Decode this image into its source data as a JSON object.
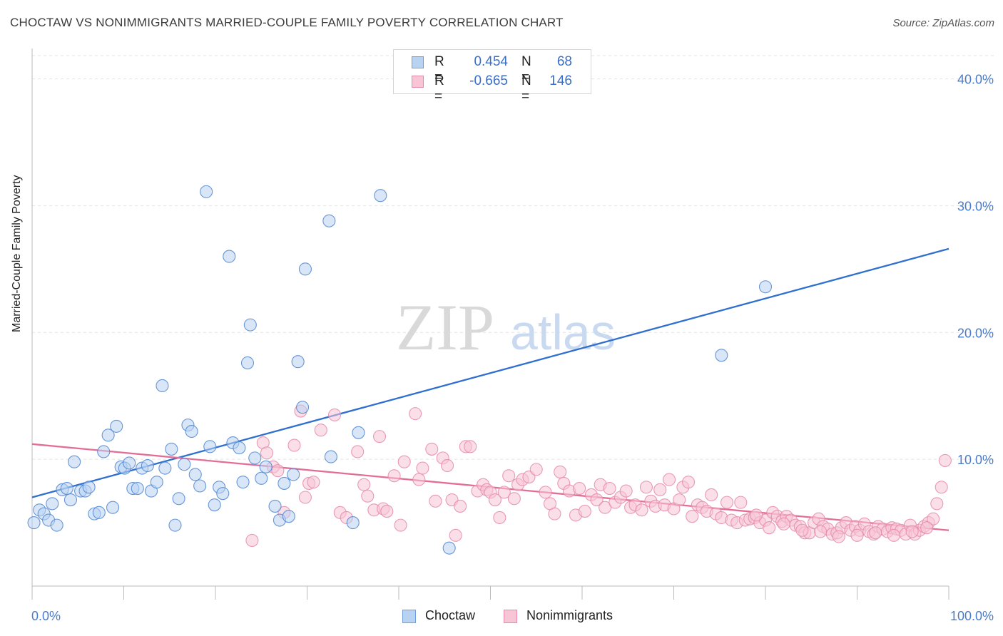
{
  "title": "CHOCTAW VS NONIMMIGRANTS MARRIED-COUPLE FAMILY POVERTY CORRELATION CHART",
  "source": "Source: ZipAtlas.com",
  "watermark": {
    "zip": "ZIP",
    "atlas": "atlas"
  },
  "legend": {
    "rows": [
      {
        "r_label": "R =",
        "r_value": "0.454",
        "n_label": "N =",
        "n_value": "68",
        "color": "#6f9fd8",
        "fill": "#b8d2f2"
      },
      {
        "r_label": "R =",
        "r_value": "-0.665",
        "n_label": "N =",
        "n_value": "146",
        "color": "#e58aa9",
        "fill": "#f7c5d5"
      }
    ]
  },
  "bottom_legend": [
    {
      "label": "Choctaw"
    },
    {
      "label": "Nonimmigrants"
    }
  ],
  "chart_data": {
    "type": "scatter",
    "title": "CHOCTAW VS NONIMMIGRANTS MARRIED-COUPLE FAMILY POVERTY CORRELATION CHART",
    "xlabel": "",
    "ylabel": "Married-Couple Family Poverty",
    "xlim": [
      0,
      100
    ],
    "ylim": [
      0,
      42
    ],
    "x_tick_labels": [
      "0.0%",
      "100.0%"
    ],
    "y_ticks": [
      10,
      20,
      30,
      40
    ],
    "y_tick_labels": [
      "10.0%",
      "20.0%",
      "30.0%",
      "40.0%"
    ],
    "grid": true,
    "legend_position": "top-center",
    "series": [
      {
        "name": "Choctaw",
        "color": "#4f86d0",
        "fill": "#b8d2f2",
        "trend": {
          "x": [
            0,
            100
          ],
          "y": [
            7.0,
            26.6
          ],
          "color": "#2f6fce"
        },
        "points": [
          [
            0.2,
            5.0
          ],
          [
            0.8,
            6.0
          ],
          [
            1.3,
            5.7
          ],
          [
            1.8,
            5.2
          ],
          [
            2.2,
            6.5
          ],
          [
            2.7,
            4.8
          ],
          [
            3.3,
            7.6
          ],
          [
            3.8,
            7.7
          ],
          [
            4.2,
            6.8
          ],
          [
            4.6,
            9.8
          ],
          [
            5.3,
            7.5
          ],
          [
            5.8,
            7.5
          ],
          [
            6.2,
            7.8
          ],
          [
            6.8,
            5.7
          ],
          [
            7.3,
            5.8
          ],
          [
            7.8,
            10.6
          ],
          [
            8.3,
            11.9
          ],
          [
            8.8,
            6.2
          ],
          [
            9.2,
            12.6
          ],
          [
            9.7,
            9.4
          ],
          [
            10.1,
            9.3
          ],
          [
            10.6,
            9.7
          ],
          [
            11.0,
            7.7
          ],
          [
            11.5,
            7.7
          ],
          [
            12.0,
            9.3
          ],
          [
            12.6,
            9.5
          ],
          [
            13.0,
            7.5
          ],
          [
            13.6,
            8.2
          ],
          [
            14.2,
            15.8
          ],
          [
            14.5,
            9.3
          ],
          [
            15.2,
            10.8
          ],
          [
            15.6,
            4.8
          ],
          [
            16.0,
            6.9
          ],
          [
            16.6,
            9.6
          ],
          [
            17.0,
            12.7
          ],
          [
            17.4,
            12.2
          ],
          [
            17.8,
            8.8
          ],
          [
            18.3,
            7.9
          ],
          [
            19.0,
            31.1
          ],
          [
            19.4,
            11.0
          ],
          [
            19.9,
            6.4
          ],
          [
            20.4,
            7.8
          ],
          [
            20.8,
            7.3
          ],
          [
            21.5,
            26.0
          ],
          [
            21.9,
            11.3
          ],
          [
            22.6,
            10.9
          ],
          [
            23.0,
            8.2
          ],
          [
            23.5,
            17.6
          ],
          [
            23.8,
            20.6
          ],
          [
            24.3,
            10.1
          ],
          [
            25.0,
            8.5
          ],
          [
            25.5,
            9.4
          ],
          [
            26.5,
            6.3
          ],
          [
            27.0,
            5.2
          ],
          [
            27.5,
            8.1
          ],
          [
            28.0,
            5.5
          ],
          [
            28.5,
            8.8
          ],
          [
            29.0,
            17.7
          ],
          [
            29.5,
            14.1
          ],
          [
            29.8,
            25.0
          ],
          [
            32.4,
            28.8
          ],
          [
            32.6,
            10.2
          ],
          [
            35.0,
            5.0
          ],
          [
            35.6,
            12.1
          ],
          [
            38.0,
            30.8
          ],
          [
            45.5,
            3.0
          ],
          [
            75.2,
            18.2
          ],
          [
            80.0,
            23.6
          ]
        ]
      },
      {
        "name": "Nonimmigrants",
        "color": "#e58aa9",
        "fill": "#f7c5d5",
        "trend": {
          "x": [
            0,
            100
          ],
          "y": [
            11.2,
            4.4
          ],
          "color": "#e46d97"
        },
        "points": [
          [
            24.0,
            3.6
          ],
          [
            25.2,
            11.3
          ],
          [
            25.6,
            10.5
          ],
          [
            26.3,
            9.4
          ],
          [
            26.8,
            9.1
          ],
          [
            27.5,
            5.8
          ],
          [
            28.6,
            11.1
          ],
          [
            29.3,
            13.8
          ],
          [
            29.8,
            7.0
          ],
          [
            30.2,
            8.1
          ],
          [
            30.7,
            8.2
          ],
          [
            31.5,
            12.3
          ],
          [
            33.0,
            13.5
          ],
          [
            33.6,
            5.8
          ],
          [
            34.3,
            5.4
          ],
          [
            35.5,
            10.6
          ],
          [
            36.2,
            8.0
          ],
          [
            36.6,
            7.1
          ],
          [
            37.3,
            6.0
          ],
          [
            37.9,
            11.8
          ],
          [
            38.3,
            6.1
          ],
          [
            38.7,
            5.9
          ],
          [
            39.5,
            8.7
          ],
          [
            40.2,
            4.8
          ],
          [
            40.6,
            9.8
          ],
          [
            41.8,
            13.6
          ],
          [
            42.2,
            8.4
          ],
          [
            42.6,
            9.3
          ],
          [
            43.6,
            10.8
          ],
          [
            44.0,
            6.7
          ],
          [
            44.8,
            10.1
          ],
          [
            45.3,
            9.5
          ],
          [
            45.8,
            6.8
          ],
          [
            46.2,
            4.0
          ],
          [
            46.7,
            6.3
          ],
          [
            47.3,
            11.0
          ],
          [
            47.8,
            11.0
          ],
          [
            48.6,
            7.5
          ],
          [
            49.2,
            8.0
          ],
          [
            49.6,
            7.6
          ],
          [
            50.0,
            7.4
          ],
          [
            50.5,
            6.8
          ],
          [
            51.0,
            5.4
          ],
          [
            51.5,
            7.4
          ],
          [
            52.0,
            8.7
          ],
          [
            52.6,
            6.9
          ],
          [
            53.0,
            8.0
          ],
          [
            53.5,
            8.4
          ],
          [
            54.2,
            8.6
          ],
          [
            55.0,
            9.2
          ],
          [
            56.0,
            7.4
          ],
          [
            56.5,
            6.5
          ],
          [
            57.0,
            5.7
          ],
          [
            57.6,
            9.0
          ],
          [
            58.0,
            8.1
          ],
          [
            58.6,
            7.5
          ],
          [
            59.3,
            5.6
          ],
          [
            59.7,
            7.7
          ],
          [
            60.3,
            5.9
          ],
          [
            61.0,
            7.2
          ],
          [
            61.6,
            6.8
          ],
          [
            62.0,
            8.0
          ],
          [
            62.5,
            6.2
          ],
          [
            63.0,
            7.7
          ],
          [
            63.6,
            6.6
          ],
          [
            64.2,
            7.0
          ],
          [
            64.8,
            7.5
          ],
          [
            65.3,
            6.2
          ],
          [
            65.8,
            6.4
          ],
          [
            66.5,
            6.0
          ],
          [
            67.0,
            7.8
          ],
          [
            67.5,
            6.7
          ],
          [
            68.0,
            6.3
          ],
          [
            68.5,
            7.6
          ],
          [
            69.0,
            6.4
          ],
          [
            69.5,
            8.4
          ],
          [
            70.0,
            6.1
          ],
          [
            70.6,
            6.8
          ],
          [
            71.0,
            7.8
          ],
          [
            71.6,
            8.2
          ],
          [
            72.0,
            5.5
          ],
          [
            72.6,
            6.4
          ],
          [
            73.1,
            6.2
          ],
          [
            73.6,
            5.9
          ],
          [
            74.1,
            7.2
          ],
          [
            74.6,
            5.7
          ],
          [
            75.2,
            5.4
          ],
          [
            75.8,
            6.6
          ],
          [
            76.3,
            5.2
          ],
          [
            76.9,
            5.0
          ],
          [
            77.3,
            6.6
          ],
          [
            77.8,
            5.2
          ],
          [
            78.3,
            5.3
          ],
          [
            78.8,
            5.4
          ],
          [
            79.4,
            5.0
          ],
          [
            80.0,
            5.2
          ],
          [
            80.4,
            4.6
          ],
          [
            80.8,
            5.8
          ],
          [
            81.3,
            5.5
          ],
          [
            81.8,
            5.1
          ],
          [
            82.3,
            5.5
          ],
          [
            82.8,
            5.2
          ],
          [
            83.3,
            4.8
          ],
          [
            83.8,
            4.7
          ],
          [
            84.3,
            4.2
          ],
          [
            84.8,
            4.2
          ],
          [
            85.3,
            5.0
          ],
          [
            85.8,
            5.3
          ],
          [
            86.3,
            4.7
          ],
          [
            86.8,
            4.5
          ],
          [
            87.3,
            4.1
          ],
          [
            87.8,
            4.2
          ],
          [
            88.3,
            4.6
          ],
          [
            88.8,
            5.0
          ],
          [
            89.3,
            4.4
          ],
          [
            89.8,
            4.7
          ],
          [
            90.3,
            4.4
          ],
          [
            90.8,
            4.9
          ],
          [
            91.3,
            4.3
          ],
          [
            91.8,
            4.1
          ],
          [
            92.3,
            4.7
          ],
          [
            92.8,
            4.5
          ],
          [
            93.3,
            4.3
          ],
          [
            93.8,
            4.6
          ],
          [
            94.3,
            4.5
          ],
          [
            94.8,
            4.4
          ],
          [
            95.3,
            4.1
          ],
          [
            95.8,
            4.8
          ],
          [
            96.3,
            4.1
          ],
          [
            96.8,
            4.4
          ],
          [
            97.3,
            4.7
          ],
          [
            97.8,
            5.0
          ],
          [
            98.3,
            5.3
          ],
          [
            98.7,
            6.5
          ],
          [
            99.2,
            7.8
          ],
          [
            99.6,
            9.9
          ],
          [
            97.6,
            4.6
          ],
          [
            96.0,
            4.3
          ],
          [
            94.0,
            4.0
          ],
          [
            92.0,
            4.2
          ],
          [
            90.0,
            4.0
          ],
          [
            88.0,
            3.9
          ],
          [
            86.0,
            4.3
          ],
          [
            84.0,
            4.4
          ],
          [
            82.0,
            4.9
          ],
          [
            79.0,
            5.6
          ]
        ]
      }
    ]
  }
}
